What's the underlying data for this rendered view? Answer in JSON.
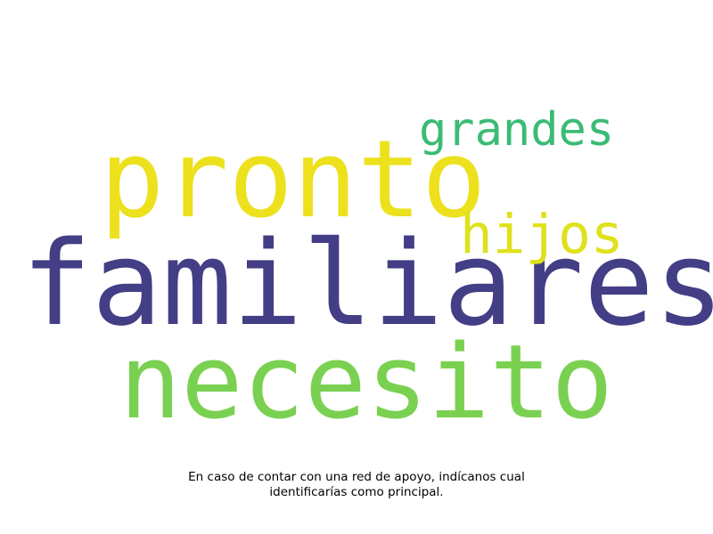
{
  "wordcloud": {
    "words": [
      {
        "key": "familiares",
        "text": "familiares",
        "color": "#433e85"
      },
      {
        "key": "pronto",
        "text": "pronto",
        "color": "#ece11c"
      },
      {
        "key": "necesito",
        "text": "necesito",
        "color": "#7ad151"
      },
      {
        "key": "grandes",
        "text": "grandes",
        "color": "#3bbb75"
      },
      {
        "key": "hijos",
        "text": "hijos",
        "color": "#dfe11c"
      }
    ]
  },
  "caption": {
    "line1": "En caso de contar con una red de apoyo, indícanos cual",
    "line2": "identificarías como principal."
  }
}
